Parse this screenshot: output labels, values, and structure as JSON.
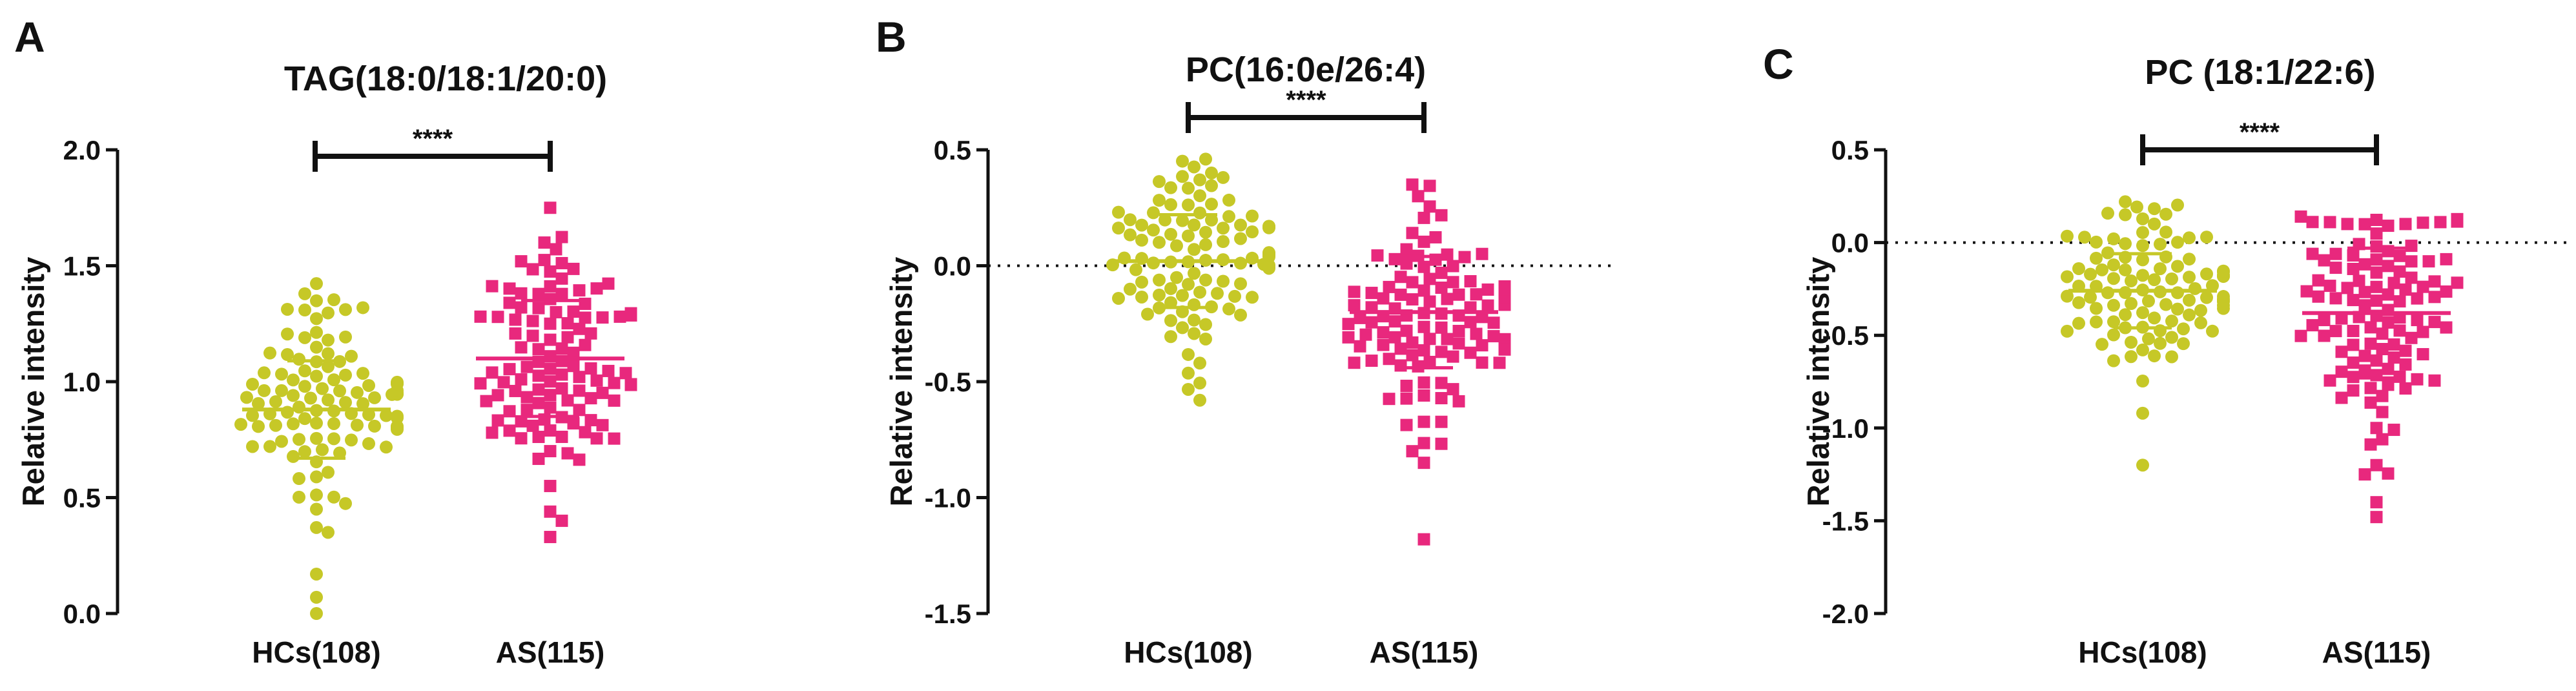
{
  "colors": {
    "hc": "#c6c827",
    "as": "#e8287d",
    "axis": "#111111"
  },
  "chart_data": [
    {
      "type": "scatter",
      "panel": "A",
      "title": "TAG(18:0/18:1/20:0)",
      "ylabel": "Relative intensity",
      "ylim": [
        0.0,
        2.0
      ],
      "yticks": [
        "0.0",
        "0.5",
        "1.0",
        "1.5",
        "2.0"
      ],
      "categories": [
        "HCs(108)",
        "AS(115)"
      ],
      "zero_line": false,
      "significance": "****",
      "series": [
        {
          "name": "HCs(108)",
          "n": 108,
          "mean": 0.88,
          "sd": 0.21,
          "min": 0.0,
          "max": 1.44,
          "points": [
            0.0,
            0.07,
            0.17,
            0.35,
            0.45
          ]
        },
        {
          "name": "AS(115)",
          "n": 115,
          "mean": 1.1,
          "sd": 0.25,
          "min": 0.33,
          "max": 1.75,
          "points": [
            0.33,
            0.4,
            0.55,
            1.6,
            1.75
          ]
        }
      ]
    },
    {
      "type": "scatter",
      "panel": "B",
      "title": "PC(16:0e/26:4)",
      "ylabel": "Relative intensity",
      "ylim": [
        -1.5,
        0.5
      ],
      "yticks": [
        "-1.5",
        "-1.0",
        "-0.5",
        "0.0",
        "0.5"
      ],
      "categories": [
        "HCs(108)",
        "AS(115)"
      ],
      "zero_line": true,
      "significance": "****",
      "series": [
        {
          "name": "HCs(108)",
          "n": 108,
          "mean": 0.02,
          "sd": 0.2,
          "min": -0.58,
          "max": 0.46,
          "points": [
            -0.58,
            -0.42,
            0.4,
            0.46
          ]
        },
        {
          "name": "AS(115)",
          "n": 115,
          "mean": -0.2,
          "sd": 0.24,
          "min": -1.18,
          "max": 0.35,
          "points": [
            -1.18,
            -0.8,
            -0.85,
            0.3,
            0.35
          ]
        }
      ]
    },
    {
      "type": "scatter",
      "panel": "C",
      "title": "PC (18:1/22:6)",
      "ylabel": "Relative intensity",
      "ylim": [
        -2.0,
        0.5
      ],
      "yticks": [
        "-2.0",
        "-1.5",
        "-1.0",
        "-0.5",
        "0.0",
        "0.5"
      ],
      "categories": [
        "HCs(108)",
        "AS(115)"
      ],
      "zero_line": true,
      "significance": "****",
      "series": [
        {
          "name": "HCs(108)",
          "n": 108,
          "mean": -0.26,
          "sd": 0.2,
          "min": -1.2,
          "max": 0.22,
          "points": [
            -1.2,
            -0.92,
            0.15,
            0.22
          ]
        },
        {
          "name": "AS(115)",
          "n": 115,
          "mean": -0.38,
          "sd": 0.35,
          "min": -1.48,
          "max": 0.14,
          "points": [
            -1.48,
            -1.4,
            -1.25,
            -1.2,
            0.1,
            0.14
          ]
        }
      ]
    }
  ]
}
